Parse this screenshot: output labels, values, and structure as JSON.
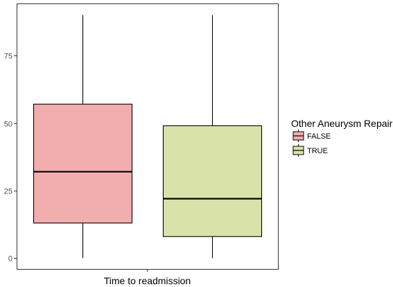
{
  "chart_data": {
    "type": "boxplot",
    "xlabel": "Time to readmission",
    "ylabel": "",
    "ylim": [
      -4,
      94
    ],
    "yticks": [
      0,
      25,
      50,
      75
    ],
    "grid": false,
    "legend": {
      "title": "Other Aneurysm Repair",
      "position": "right"
    },
    "series": [
      {
        "name": "FALSE",
        "color": "#f2adaf",
        "min": 0,
        "q1": 13,
        "median": 32,
        "q3": 57,
        "max": 90
      },
      {
        "name": "TRUE",
        "color": "#d9e3a9",
        "min": 0,
        "q1": 8,
        "median": 22,
        "q3": 49,
        "max": 90
      }
    ]
  }
}
